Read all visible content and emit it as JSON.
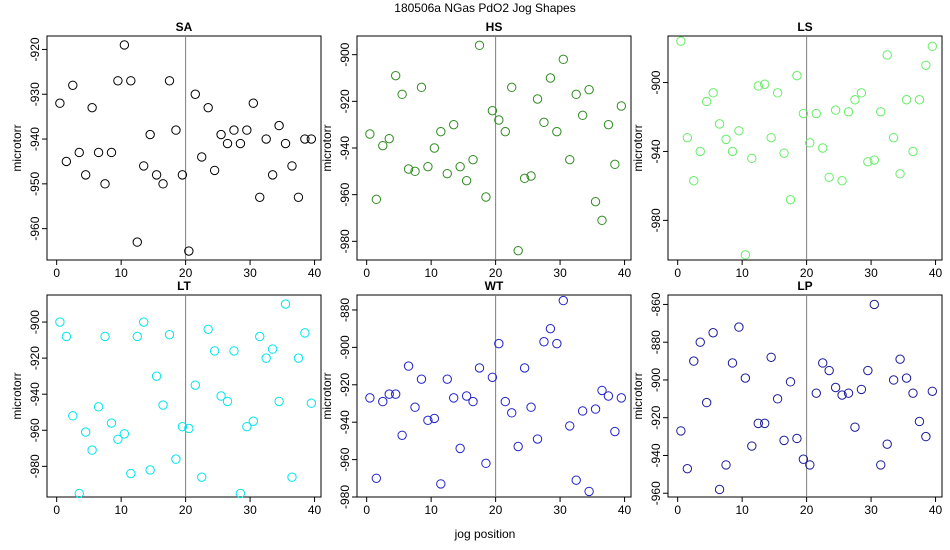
{
  "figure": {
    "title": "180506a   NGas PdO2 Jog Shapes",
    "xlabel": "jog position"
  },
  "chart_data": [
    {
      "type": "scatter",
      "title": "SA",
      "ylabel": "microtorr",
      "color": "#000000",
      "xlim": [
        -1.5,
        41
      ],
      "ylim": [
        -967,
        -917
      ],
      "xticks": [
        0,
        10,
        20,
        30,
        40
      ],
      "yticks": [
        -960,
        -950,
        -940,
        -930,
        -920
      ],
      "vline": 20,
      "x": [
        0.5,
        1.5,
        2.5,
        3.5,
        4.5,
        5.5,
        6.5,
        7.5,
        8.5,
        9.5,
        10.5,
        11.5,
        12.5,
        13.5,
        14.5,
        15.5,
        16.5,
        17.5,
        18.5,
        19.5,
        20.5,
        21.5,
        22.5,
        23.5,
        24.5,
        25.5,
        26.5,
        27.5,
        28.5,
        29.5,
        30.5,
        31.5,
        32.5,
        33.5,
        34.5,
        35.5,
        36.5,
        37.5,
        38.5,
        39.5
      ],
      "y": [
        -932,
        -945,
        -928,
        -943,
        -948,
        -933,
        -943,
        -950,
        -943,
        -927,
        -919,
        -927,
        -963,
        -946,
        -939,
        -948,
        -950,
        -927,
        -938,
        -948,
        -965,
        -930,
        -944,
        -933,
        -947,
        -939,
        -941,
        -938,
        -941,
        -938,
        -932,
        -953,
        -940,
        -948,
        -937,
        -941,
        -946,
        -953,
        -940,
        -940
      ]
    },
    {
      "type": "scatter",
      "title": "HS",
      "ylabel": "microtorr",
      "color": "#2e8b1f",
      "xlim": [
        -1.5,
        41
      ],
      "ylim": [
        -988,
        -892
      ],
      "xticks": [
        0,
        10,
        20,
        30,
        40
      ],
      "yticks": [
        -980,
        -960,
        -940,
        -920,
        -900
      ],
      "vline": 20,
      "x": [
        0.5,
        1.5,
        2.5,
        3.5,
        4.5,
        5.5,
        6.5,
        7.5,
        8.5,
        9.5,
        10.5,
        11.5,
        12.5,
        13.5,
        14.5,
        15.5,
        16.5,
        17.5,
        18.5,
        19.5,
        20.5,
        21.5,
        22.5,
        23.5,
        24.5,
        25.5,
        26.5,
        27.5,
        28.5,
        29.5,
        30.5,
        31.5,
        32.5,
        33.5,
        34.5,
        35.5,
        36.5,
        37.5,
        38.5,
        39.5
      ],
      "y": [
        -934,
        -962,
        -939,
        -936,
        -909,
        -917,
        -949,
        -950,
        -914,
        -948,
        -940,
        -933,
        -951,
        -930,
        -948,
        -954,
        -945,
        -896,
        -961,
        -924,
        -928,
        -933,
        -914,
        -984,
        -953,
        -952,
        -919,
        -929,
        -910,
        -933,
        -902,
        -945,
        -917,
        -926,
        -915,
        -963,
        -971,
        -930,
        -947,
        -922
      ]
    },
    {
      "type": "scatter",
      "title": "LS",
      "ylabel": "microtorr",
      "color": "#66ee66",
      "xlim": [
        -1.5,
        41
      ],
      "ylim": [
        -1003,
        -873
      ],
      "xticks": [
        0,
        10,
        20,
        30,
        40
      ],
      "yticks": [
        -980,
        -940,
        -900
      ],
      "vline": 20,
      "x": [
        0.5,
        1.5,
        2.5,
        3.5,
        4.5,
        5.5,
        6.5,
        7.5,
        8.5,
        9.5,
        10.5,
        11.5,
        12.5,
        13.5,
        14.5,
        15.5,
        16.5,
        17.5,
        18.5,
        19.5,
        20.5,
        21.5,
        22.5,
        23.5,
        24.5,
        25.5,
        26.5,
        27.5,
        28.5,
        29.5,
        30.5,
        31.5,
        32.5,
        33.5,
        34.5,
        35.5,
        36.5,
        37.5,
        38.5,
        39.5
      ],
      "y": [
        -876,
        -932,
        -957,
        -940,
        -911,
        -906,
        -924,
        -933,
        -940,
        -928,
        -1000,
        -944,
        -902,
        -901,
        -932,
        -906,
        -941,
        -968,
        -896,
        -918,
        -935,
        -918,
        -938,
        -955,
        -916,
        -957,
        -917,
        -910,
        -906,
        -946,
        -945,
        -917,
        -884,
        -932,
        -953,
        -910,
        -940,
        -910,
        -890,
        -879
      ]
    },
    {
      "type": "scatter",
      "title": "LT",
      "ylabel": "microtorr",
      "color": "#00e5ee",
      "xlim": [
        -1.5,
        41
      ],
      "ylim": [
        -997,
        -885
      ],
      "xticks": [
        0,
        10,
        20,
        30,
        40
      ],
      "yticks": [
        -980,
        -960,
        -940,
        -920,
        -900
      ],
      "vline": 20,
      "x": [
        0.5,
        1.5,
        2.5,
        3.5,
        4.5,
        5.5,
        6.5,
        7.5,
        8.5,
        9.5,
        10.5,
        11.5,
        12.5,
        13.5,
        14.5,
        15.5,
        16.5,
        17.5,
        18.5,
        19.5,
        20.5,
        21.5,
        22.5,
        23.5,
        24.5,
        25.5,
        26.5,
        27.5,
        28.5,
        29.5,
        30.5,
        31.5,
        32.5,
        33.5,
        34.5,
        35.5,
        36.5,
        37.5,
        38.5,
        39.5
      ],
      "y": [
        -900,
        -908,
        -952,
        -995,
        -961,
        -971,
        -947,
        -908,
        -956,
        -965,
        -962,
        -984,
        -908,
        -900,
        -982,
        -930,
        -946,
        -907,
        -976,
        -958,
        -959,
        -935,
        -986,
        -904,
        -916,
        -941,
        -944,
        -916,
        -995,
        -958,
        -955,
        -908,
        -920,
        -915,
        -944,
        -890,
        -986,
        -920,
        -906,
        -945
      ]
    },
    {
      "type": "scatter",
      "title": "WT",
      "ylabel": "microtorr",
      "color": "#2222cc",
      "xlim": [
        -1.5,
        41
      ],
      "ylim": [
        -980,
        -872
      ],
      "xticks": [
        0,
        10,
        20,
        30,
        40
      ],
      "yticks": [
        -980,
        -960,
        -940,
        -920,
        -900,
        -880
      ],
      "vline": 20,
      "x": [
        0.5,
        1.5,
        2.5,
        3.5,
        4.5,
        5.5,
        6.5,
        7.5,
        8.5,
        9.5,
        10.5,
        11.5,
        12.5,
        13.5,
        14.5,
        15.5,
        16.5,
        17.5,
        18.5,
        19.5,
        20.5,
        21.5,
        22.5,
        23.5,
        24.5,
        25.5,
        26.5,
        27.5,
        28.5,
        29.5,
        30.5,
        31.5,
        32.5,
        33.5,
        34.5,
        35.5,
        36.5,
        37.5,
        38.5,
        39.5
      ],
      "y": [
        -927,
        -970,
        -929,
        -925,
        -925,
        -947,
        -910,
        -932,
        -917,
        -939,
        -938,
        -973,
        -917,
        -927,
        -954,
        -926,
        -929,
        -911,
        -962,
        -916,
        -898,
        -929,
        -935,
        -953,
        -911,
        -932,
        -949,
        -897,
        -890,
        -898,
        -875,
        -942,
        -971,
        -934,
        -977,
        -933,
        -923,
        -926,
        -945,
        -927
      ]
    },
    {
      "type": "scatter",
      "title": "LP",
      "ylabel": "microtorr",
      "color": "#1a1a99",
      "xlim": [
        -1.5,
        41
      ],
      "ylim": [
        -962,
        -855
      ],
      "xticks": [
        0,
        10,
        20,
        30,
        40
      ],
      "yticks": [
        -960,
        -940,
        -920,
        -900,
        -880,
        -860
      ],
      "vline": 20,
      "x": [
        0.5,
        1.5,
        2.5,
        3.5,
        4.5,
        5.5,
        6.5,
        7.5,
        8.5,
        9.5,
        10.5,
        11.5,
        12.5,
        13.5,
        14.5,
        15.5,
        16.5,
        17.5,
        18.5,
        19.5,
        20.5,
        21.5,
        22.5,
        23.5,
        24.5,
        25.5,
        26.5,
        27.5,
        28.5,
        29.5,
        30.5,
        31.5,
        32.5,
        33.5,
        34.5,
        35.5,
        36.5,
        37.5,
        38.5,
        39.5
      ],
      "y": [
        -927,
        -947,
        -890,
        -880,
        -912,
        -875,
        -958,
        -945,
        -891,
        -872,
        -899,
        -935,
        -923,
        -923,
        -888,
        -910,
        -932,
        -901,
        -931,
        -942,
        -945,
        -907,
        -891,
        -895,
        -904,
        -908,
        -907,
        -925,
        -905,
        -895,
        -860,
        -945,
        -934,
        -900,
        -889,
        -899,
        -907,
        -922,
        -930,
        -906
      ]
    }
  ]
}
